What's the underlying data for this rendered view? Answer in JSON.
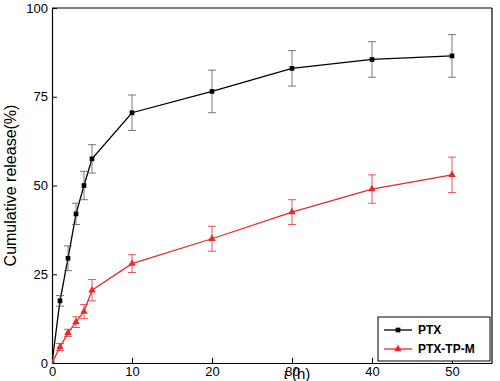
{
  "chart_data": {
    "type": "line",
    "x_label": "t (h)",
    "y_label": "Cumulative release(%)",
    "x": [
      0,
      1,
      2,
      3,
      4,
      5,
      10,
      20,
      30,
      40,
      50
    ],
    "series": [
      {
        "name": "PTX",
        "color": "#000000",
        "marker": "square",
        "line_style": "solid",
        "values": [
          0,
          17.5,
          29.5,
          42,
          50,
          57.5,
          70.5,
          76.5,
          83,
          85.5,
          86.5
        ],
        "errors": [
          0,
          1.5,
          3.5,
          3,
          4,
          4,
          5,
          6,
          5,
          5,
          6
        ]
      },
      {
        "name": "PTX-TP-M",
        "color": "#e8282a",
        "marker": "triangle",
        "line_style": "solid",
        "values": [
          0,
          4.5,
          8.5,
          11.5,
          14.5,
          20.5,
          28,
          35,
          42.5,
          49,
          53
        ],
        "errors": [
          0,
          1,
          1,
          1.5,
          2,
          3,
          2.5,
          3.5,
          3.5,
          4,
          5
        ]
      }
    ],
    "xlim": [
      0,
      55
    ],
    "xticks": [
      0,
      10,
      20,
      30,
      40,
      50
    ],
    "ylim": [
      0,
      100
    ],
    "yticks": [
      0,
      25,
      50,
      75,
      100
    ],
    "grid": false,
    "legend": "lower right"
  }
}
